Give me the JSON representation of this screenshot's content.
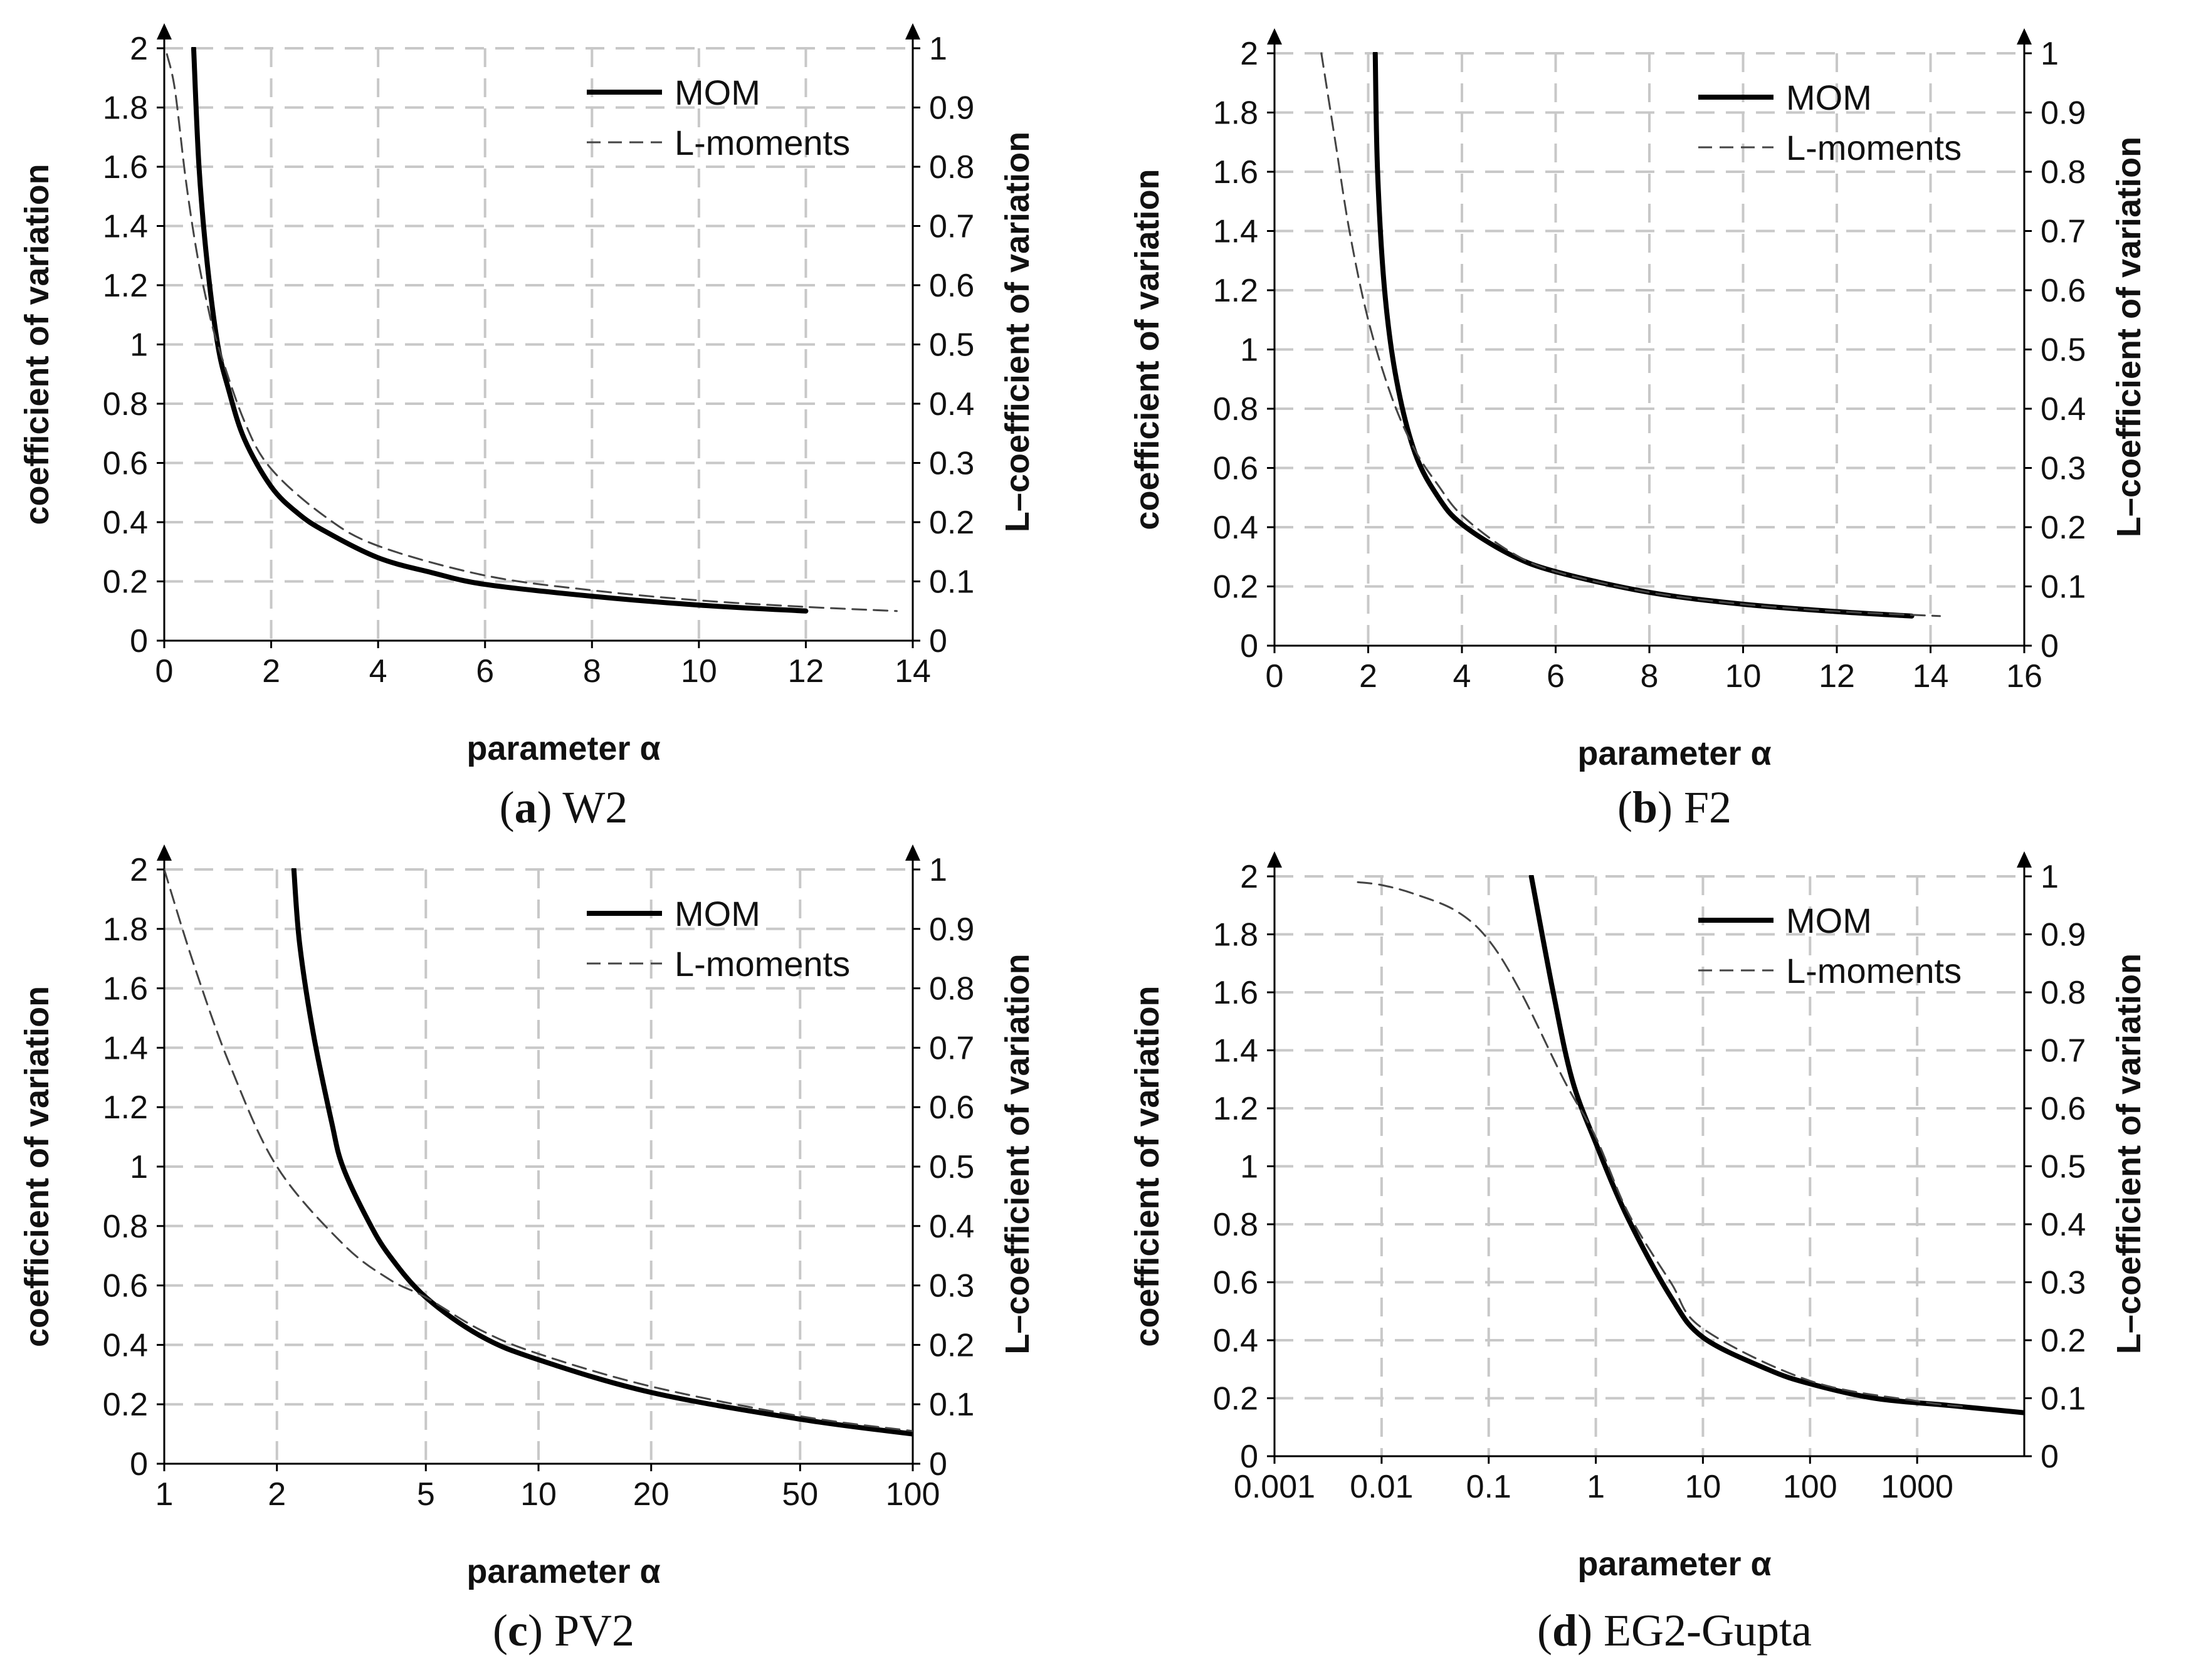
{
  "chart_data": [
    {
      "type": "line",
      "caption_label": "a",
      "caption_title": "W2",
      "xlabel": "parameter α",
      "ylabel": "coefficient of variation",
      "ylabel_right": "L–coefficient of variation",
      "xscale": "linear",
      "xlim": [
        0,
        14
      ],
      "xticks": [
        0,
        2,
        4,
        6,
        8,
        10,
        12,
        14
      ],
      "xtick_labels": [
        "0",
        "2",
        "4",
        "6",
        "8",
        "10",
        "12",
        "14"
      ],
      "ylim": [
        0,
        2
      ],
      "yticks": [
        0,
        0.2,
        0.4,
        0.6,
        0.8,
        1,
        1.2,
        1.4,
        1.6,
        1.8,
        2
      ],
      "ytick_labels": [
        "0",
        "0.2",
        "0.4",
        "0.6",
        "0.8",
        "1",
        "1.2",
        "1.4",
        "1.6",
        "1.8",
        "2"
      ],
      "ylim_right": [
        0,
        1
      ],
      "yticks_right": [
        0,
        0.1,
        0.2,
        0.3,
        0.4,
        0.5,
        0.6,
        0.7,
        0.8,
        0.9,
        1
      ],
      "ytick_labels_right": [
        "0",
        "0.1",
        "0.2",
        "0.3",
        "0.4",
        "0.5",
        "0.6",
        "0.7",
        "0.8",
        "0.9",
        "1"
      ],
      "grid": true,
      "legend_position": "top-right",
      "series": [
        {
          "name": "MOM",
          "axis": "left",
          "style": "solid",
          "color": "#000000",
          "points": [
            [
              0.55,
              2.0
            ],
            [
              0.65,
              1.6
            ],
            [
              0.8,
              1.28
            ],
            [
              1.0,
              1.0
            ],
            [
              1.2,
              0.85
            ],
            [
              1.5,
              0.68
            ],
            [
              2.0,
              0.52
            ],
            [
              2.5,
              0.43
            ],
            [
              3.0,
              0.37
            ],
            [
              4.0,
              0.28
            ],
            [
              5.0,
              0.23
            ],
            [
              6.0,
              0.19
            ],
            [
              8.0,
              0.15
            ],
            [
              10.0,
              0.12
            ],
            [
              12.0,
              0.1
            ]
          ]
        },
        {
          "name": "L-moments",
          "axis": "right",
          "style": "dashed",
          "color": "#444444",
          "points": [
            [
              0.05,
              0.99
            ],
            [
              0.2,
              0.93
            ],
            [
              0.4,
              0.78
            ],
            [
              0.6,
              0.66
            ],
            [
              0.8,
              0.57
            ],
            [
              1.0,
              0.5
            ],
            [
              1.5,
              0.37
            ],
            [
              2.0,
              0.29
            ],
            [
              3.0,
              0.21
            ],
            [
              4.0,
              0.16
            ],
            [
              6.0,
              0.11
            ],
            [
              8.0,
              0.085
            ],
            [
              10.0,
              0.068
            ],
            [
              12.0,
              0.057
            ],
            [
              13.7,
              0.05
            ]
          ]
        }
      ]
    },
    {
      "type": "line",
      "caption_label": "b",
      "caption_title": "F2",
      "xlabel": "parameter α",
      "ylabel": "coefficient of variation",
      "ylabel_right": "L–coefficient of variation",
      "xscale": "linear",
      "xlim": [
        0,
        16
      ],
      "xticks": [
        0,
        2,
        4,
        6,
        8,
        10,
        12,
        14,
        16
      ],
      "xtick_labels": [
        "0",
        "2",
        "4",
        "6",
        "8",
        "10",
        "12",
        "14",
        "16"
      ],
      "ylim": [
        0,
        2
      ],
      "yticks": [
        0,
        0.2,
        0.4,
        0.6,
        0.8,
        1,
        1.2,
        1.4,
        1.6,
        1.8,
        2
      ],
      "ytick_labels": [
        "0",
        "0.2",
        "0.4",
        "0.6",
        "0.8",
        "1",
        "1.2",
        "1.4",
        "1.6",
        "1.8",
        "2"
      ],
      "ylim_right": [
        0,
        1
      ],
      "yticks_right": [
        0,
        0.1,
        0.2,
        0.3,
        0.4,
        0.5,
        0.6,
        0.7,
        0.8,
        0.9,
        1
      ],
      "ytick_labels_right": [
        "0",
        "0.1",
        "0.2",
        "0.3",
        "0.4",
        "0.5",
        "0.6",
        "0.7",
        "0.8",
        "0.9",
        "1"
      ],
      "grid": true,
      "legend_position": "top-right",
      "series": [
        {
          "name": "MOM",
          "axis": "left",
          "style": "solid",
          "color": "#000000",
          "points": [
            [
              2.15,
              2.0
            ],
            [
              2.2,
              1.6
            ],
            [
              2.35,
              1.2
            ],
            [
              2.6,
              0.9
            ],
            [
              3.0,
              0.65
            ],
            [
              3.5,
              0.5
            ],
            [
              4.0,
              0.41
            ],
            [
              5.0,
              0.31
            ],
            [
              6.0,
              0.25
            ],
            [
              8.0,
              0.18
            ],
            [
              10.0,
              0.14
            ],
            [
              12.0,
              0.115
            ],
            [
              13.6,
              0.1
            ]
          ]
        },
        {
          "name": "L-moments",
          "axis": "right",
          "style": "dashed",
          "color": "#444444",
          "points": [
            [
              1.0,
              1.0
            ],
            [
              1.3,
              0.85
            ],
            [
              1.6,
              0.7
            ],
            [
              2.0,
              0.55
            ],
            [
              2.5,
              0.42
            ],
            [
              3.0,
              0.33
            ],
            [
              3.5,
              0.27
            ],
            [
              4.0,
              0.22
            ],
            [
              5.0,
              0.16
            ],
            [
              6.0,
              0.125
            ],
            [
              8.0,
              0.09
            ],
            [
              10.0,
              0.07
            ],
            [
              12.0,
              0.058
            ],
            [
              14.2,
              0.05
            ]
          ]
        }
      ]
    },
    {
      "type": "line",
      "caption_label": "c",
      "caption_title": "PV2",
      "xlabel": "parameter α",
      "ylabel": "coefficient of variation",
      "ylabel_right": "L–coefficient of variation",
      "xscale": "log",
      "xlim": [
        1,
        100
      ],
      "xticks": [
        1,
        2,
        5,
        10,
        20,
        50,
        100
      ],
      "xtick_labels": [
        "1",
        "2",
        "5",
        "10",
        "20",
        "50",
        "100"
      ],
      "ylim": [
        0,
        2
      ],
      "yticks": [
        0,
        0.2,
        0.4,
        0.6,
        0.8,
        1,
        1.2,
        1.4,
        1.6,
        1.8,
        2
      ],
      "ytick_labels": [
        "0",
        "0.2",
        "0.4",
        "0.6",
        "0.8",
        "1",
        "1.2",
        "1.4",
        "1.6",
        "1.8",
        "2"
      ],
      "ylim_right": [
        0,
        1
      ],
      "yticks_right": [
        0,
        0.1,
        0.2,
        0.3,
        0.4,
        0.5,
        0.6,
        0.7,
        0.8,
        0.9,
        1
      ],
      "ytick_labels_right": [
        "0",
        "0.1",
        "0.2",
        "0.3",
        "0.4",
        "0.5",
        "0.6",
        "0.7",
        "0.8",
        "0.9",
        "1"
      ],
      "grid": true,
      "legend_position": "top-right",
      "series": [
        {
          "name": "MOM",
          "axis": "left",
          "style": "solid",
          "color": "#000000",
          "points": [
            [
              2.22,
              2.0
            ],
            [
              2.3,
              1.75
            ],
            [
              2.5,
              1.45
            ],
            [
              2.8,
              1.15
            ],
            [
              3.0,
              1.0
            ],
            [
              3.5,
              0.82
            ],
            [
              4.0,
              0.7
            ],
            [
              5.0,
              0.56
            ],
            [
              7.0,
              0.43
            ],
            [
              10.0,
              0.35
            ],
            [
              20.0,
              0.24
            ],
            [
              50.0,
              0.15
            ],
            [
              100.0,
              0.1
            ]
          ]
        },
        {
          "name": "L-moments",
          "axis": "right",
          "style": "dashed",
          "color": "#444444",
          "points": [
            [
              1.0,
              1.0
            ],
            [
              1.2,
              0.84
            ],
            [
              1.5,
              0.67
            ],
            [
              2.0,
              0.5
            ],
            [
              3.0,
              0.37
            ],
            [
              4.0,
              0.31
            ],
            [
              5.0,
              0.28
            ],
            [
              7.0,
              0.225
            ],
            [
              10.0,
              0.185
            ],
            [
              20.0,
              0.13
            ],
            [
              50.0,
              0.08
            ],
            [
              100.0,
              0.055
            ]
          ]
        }
      ]
    },
    {
      "type": "line",
      "caption_label": "d",
      "caption_title": "EG2-Gupta",
      "xlabel": "parameter α",
      "ylabel": "coefficient of variation",
      "ylabel_right": "L–coefficient of variation",
      "xscale": "log",
      "xlim": [
        0.001,
        10000
      ],
      "xticks": [
        0.001,
        0.01,
        0.1,
        1,
        10,
        100,
        1000
      ],
      "xtick_labels": [
        "0.001",
        "0.01",
        "0.1",
        "1",
        "10",
        "100",
        "1000"
      ],
      "ylim": [
        0,
        2
      ],
      "yticks": [
        0,
        0.2,
        0.4,
        0.6,
        0.8,
        1,
        1.2,
        1.4,
        1.6,
        1.8,
        2
      ],
      "ytick_labels": [
        "0",
        "0.2",
        "0.4",
        "0.6",
        "0.8",
        "1",
        "1.2",
        "1.4",
        "1.6",
        "1.8",
        "2"
      ],
      "ylim_right": [
        0,
        1
      ],
      "yticks_right": [
        0,
        0.1,
        0.2,
        0.3,
        0.4,
        0.5,
        0.6,
        0.7,
        0.8,
        0.9,
        1
      ],
      "ytick_labels_right": [
        "0",
        "0.1",
        "0.2",
        "0.3",
        "0.4",
        "0.5",
        "0.6",
        "0.7",
        "0.8",
        "0.9",
        "1"
      ],
      "grid": true,
      "legend_position": "top-right",
      "series": [
        {
          "name": "MOM",
          "axis": "left",
          "style": "solid",
          "color": "#000000",
          "points": [
            [
              0.25,
              2.0
            ],
            [
              0.4,
              1.6
            ],
            [
              0.6,
              1.3
            ],
            [
              1.0,
              1.08
            ],
            [
              2.0,
              0.82
            ],
            [
              5.0,
              0.55
            ],
            [
              10.0,
              0.41
            ],
            [
              40.0,
              0.3
            ],
            [
              100.0,
              0.25
            ],
            [
              400.0,
              0.2
            ],
            [
              2000.0,
              0.175
            ],
            [
              10000.0,
              0.15
            ]
          ]
        },
        {
          "name": "L-moments",
          "axis": "right",
          "style": "dashed",
          "color": "#444444",
          "points": [
            [
              0.006,
              0.99
            ],
            [
              0.01,
              0.985
            ],
            [
              0.02,
              0.97
            ],
            [
              0.05,
              0.94
            ],
            [
              0.1,
              0.89
            ],
            [
              0.2,
              0.8
            ],
            [
              0.5,
              0.65
            ],
            [
              1.0,
              0.55
            ],
            [
              2.0,
              0.42
            ],
            [
              5.0,
              0.3
            ],
            [
              10.0,
              0.22
            ],
            [
              100.0,
              0.13
            ],
            [
              1000.0,
              0.095
            ],
            [
              3000.0,
              0.085
            ]
          ]
        }
      ]
    }
  ]
}
